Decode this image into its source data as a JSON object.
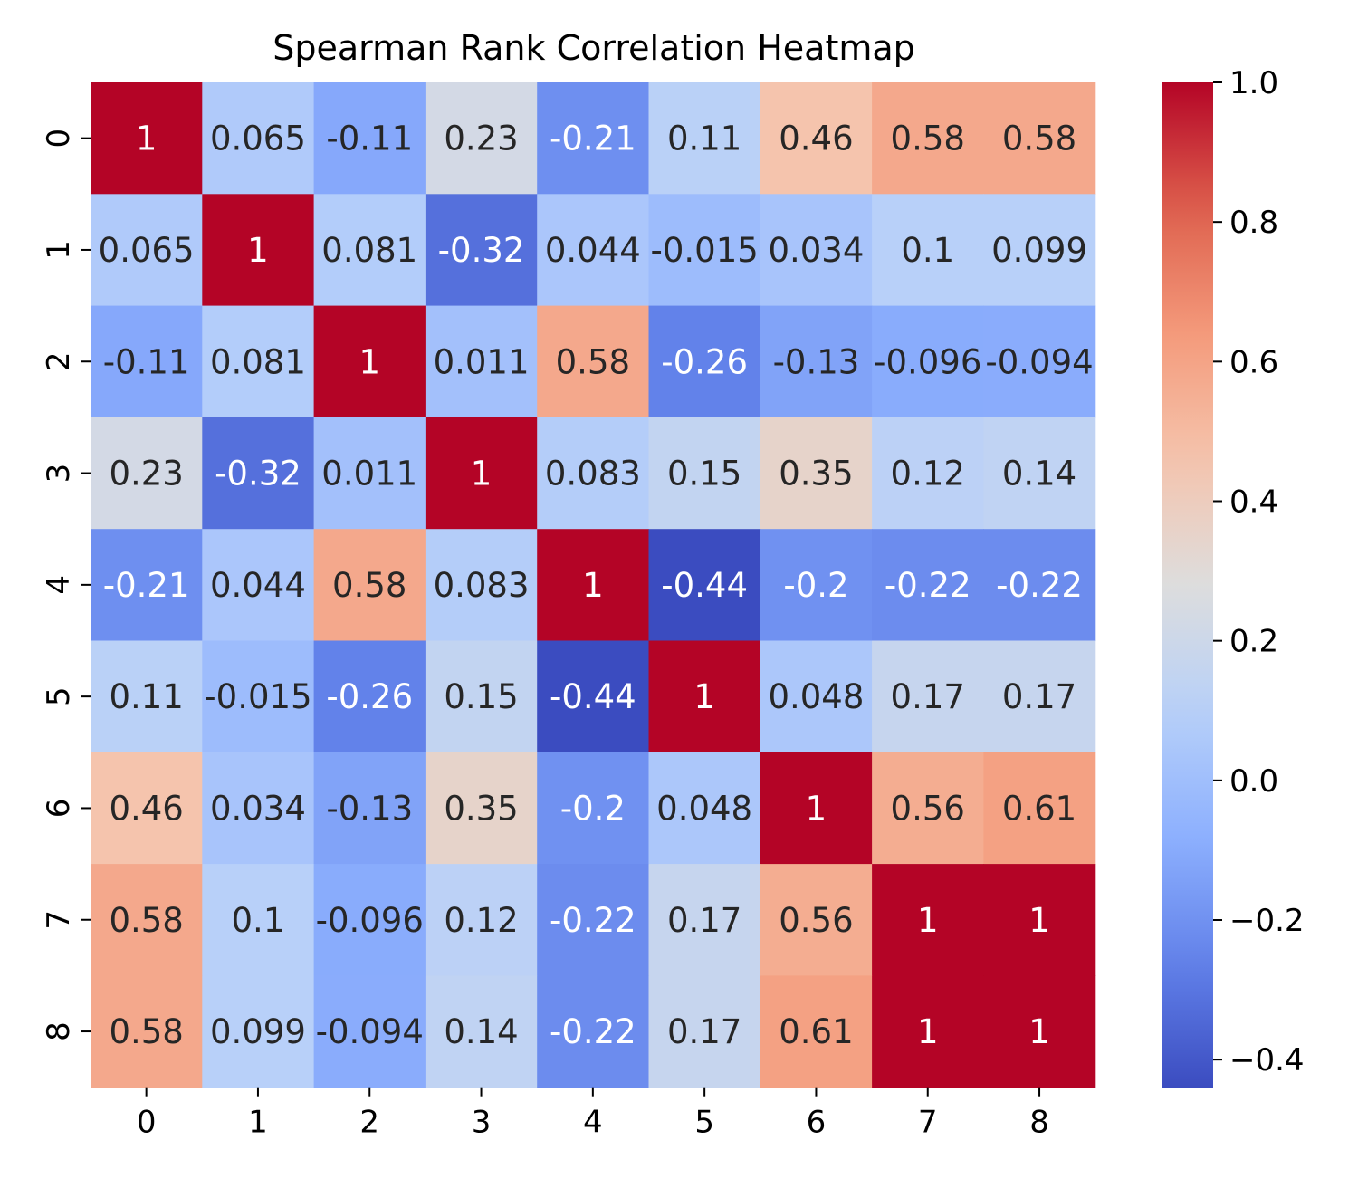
{
  "chart_data": {
    "type": "heatmap",
    "title": "Spearman Rank Correlation Heatmap",
    "xlabel": "",
    "ylabel": "",
    "x_categories": [
      "0",
      "1",
      "2",
      "3",
      "4",
      "5",
      "6",
      "7",
      "8"
    ],
    "y_categories": [
      "0",
      "1",
      "2",
      "3",
      "4",
      "5",
      "6",
      "7",
      "8"
    ],
    "values": [
      [
        1,
        0.065,
        -0.11,
        0.23,
        -0.21,
        0.11,
        0.46,
        0.58,
        0.58
      ],
      [
        0.065,
        1,
        0.081,
        -0.32,
        0.044,
        -0.015,
        0.034,
        0.1,
        0.099
      ],
      [
        -0.11,
        0.081,
        1,
        0.011,
        0.58,
        -0.26,
        -0.13,
        -0.096,
        -0.094
      ],
      [
        0.23,
        -0.32,
        0.011,
        1,
        0.083,
        0.15,
        0.35,
        0.12,
        0.14
      ],
      [
        -0.21,
        0.044,
        0.58,
        0.083,
        1,
        -0.44,
        -0.2,
        -0.22,
        -0.22
      ],
      [
        0.11,
        -0.015,
        -0.26,
        0.15,
        -0.44,
        1,
        0.048,
        0.17,
        0.17
      ],
      [
        0.46,
        0.034,
        -0.13,
        0.35,
        -0.2,
        0.048,
        1,
        0.56,
        0.61
      ],
      [
        0.58,
        0.1,
        -0.096,
        0.12,
        -0.22,
        0.17,
        0.56,
        1,
        1
      ],
      [
        0.58,
        0.099,
        -0.094,
        0.14,
        -0.22,
        0.17,
        0.61,
        1,
        1
      ]
    ],
    "annotations": [
      [
        "1",
        "0.065",
        "-0.11",
        "0.23",
        "-0.21",
        "0.11",
        "0.46",
        "0.58",
        "0.58"
      ],
      [
        "0.065",
        "1",
        "0.081",
        "-0.32",
        "0.044",
        "-0.015",
        "0.034",
        "0.1",
        "0.099"
      ],
      [
        "-0.11",
        "0.081",
        "1",
        "0.011",
        "0.58",
        "-0.26",
        "-0.13",
        "-0.096",
        "-0.094"
      ],
      [
        "0.23",
        "-0.32",
        "0.011",
        "1",
        "0.083",
        "0.15",
        "0.35",
        "0.12",
        "0.14"
      ],
      [
        "-0.21",
        "0.044",
        "0.58",
        "0.083",
        "1",
        "-0.44",
        "-0.2",
        "-0.22",
        "-0.22"
      ],
      [
        "0.11",
        "-0.015",
        "-0.26",
        "0.15",
        "-0.44",
        "1",
        "0.048",
        "0.17",
        "0.17"
      ],
      [
        "0.46",
        "0.034",
        "-0.13",
        "0.35",
        "-0.2",
        "0.048",
        "1",
        "0.56",
        "0.61"
      ],
      [
        "0.58",
        "0.1",
        "-0.096",
        "0.12",
        "-0.22",
        "0.17",
        "0.56",
        "1",
        "1"
      ],
      [
        "0.58",
        "0.099",
        "-0.094",
        "0.14",
        "-0.22",
        "0.17",
        "0.61",
        "1",
        "1"
      ]
    ],
    "colormap": "coolwarm",
    "colorbar": {
      "range": [
        -0.44,
        1.0
      ],
      "ticks": [
        1.0,
        0.8,
        0.6,
        0.4,
        0.2,
        0.0,
        -0.2,
        -0.4
      ],
      "tick_labels": [
        "1.0",
        "0.8",
        "0.6",
        "0.4",
        "0.2",
        "0.0",
        "−0.2",
        "−0.4"
      ]
    },
    "grid": false,
    "legend": "colorbar right"
  }
}
